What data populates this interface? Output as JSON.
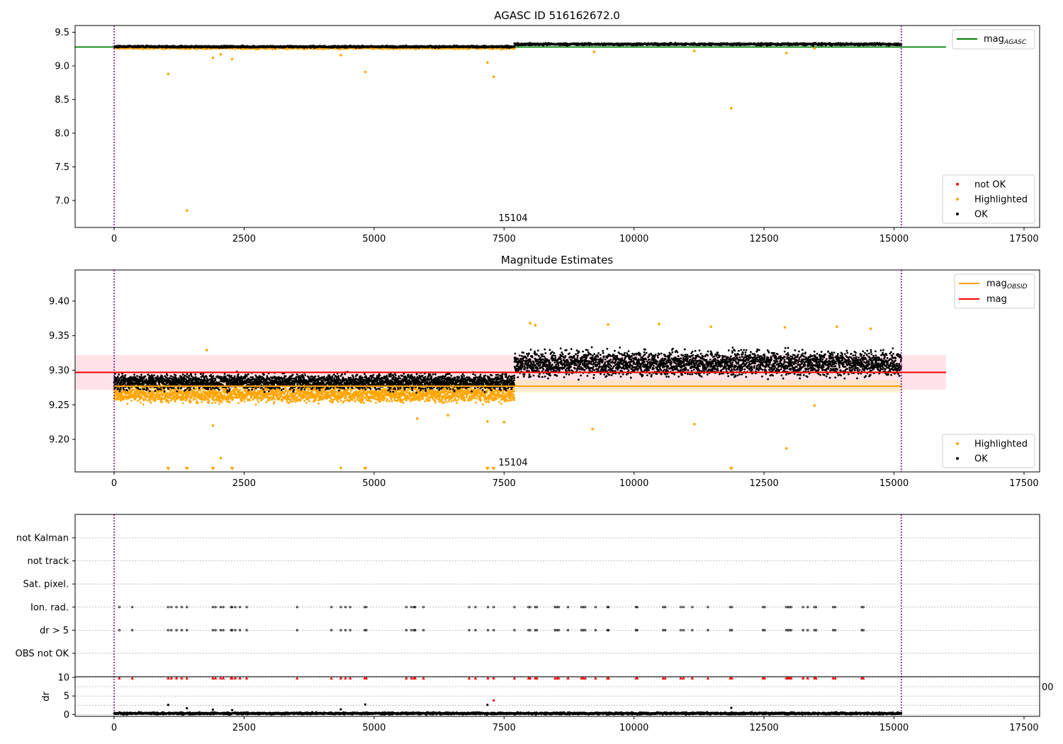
{
  "figure": {
    "title": "AGASC ID 516162672.0",
    "subtitle": "Magnitude Estimates",
    "obsid_label": "15104",
    "stray_label": "00"
  },
  "colors": {
    "ok": "#000000",
    "highlighted": "#ffa500",
    "not_ok": "#ff0000",
    "agasc_line": "#008000",
    "mag_line": "#ff0000",
    "mag_band": "#ffc0cb",
    "obsid_line": "#ffa500",
    "obsid_band": "#ffe4b5",
    "obs_boundary": "#800080",
    "grid": "#b0b0b0"
  },
  "chart_data": [
    {
      "type": "scatter",
      "panel": "top",
      "title": "AGASC ID 516162672.0",
      "xlim": [
        -750,
        17800
      ],
      "ylim": [
        6.6,
        9.6
      ],
      "xticks": [
        0,
        2500,
        5000,
        7500,
        10000,
        12500,
        15000,
        17500
      ],
      "yticks": [
        7.0,
        7.5,
        8.0,
        8.5,
        9.0,
        9.5
      ],
      "xticklabels": [
        "0",
        "2500",
        "5000",
        "7500",
        "10000",
        "12500",
        "15000",
        "17500"
      ],
      "yticklabels": [
        "7.0",
        "7.5",
        "8.0",
        "8.5",
        "9.0",
        "9.5"
      ],
      "legend_lines": {
        "labels": [
          "mag",
          "AGASC"
        ],
        "placement": "top-right"
      },
      "legend_points": {
        "labels": [
          "not OK",
          "Highlighted",
          "OK"
        ],
        "placement": "bottom-right"
      },
      "mag_agasc": 9.28,
      "obs_boundaries": [
        0,
        15140
      ],
      "obsid_label": "15104",
      "ok_segments": [
        {
          "x_range": [
            0,
            7700
          ],
          "center": 9.285,
          "spread": 0.012
        },
        {
          "x_range": [
            7700,
            15140
          ],
          "center": 9.322,
          "spread": 0.014
        }
      ],
      "highlighted_band": {
        "x_range": [
          0,
          7700
        ],
        "center": 9.262,
        "spread": 0.012
      },
      "highlighted_outliers": [
        [
          1040,
          8.88
        ],
        [
          1400,
          6.85
        ],
        [
          1900,
          9.12
        ],
        [
          2050,
          9.17
        ],
        [
          2270,
          9.1
        ],
        [
          4360,
          9.16
        ],
        [
          4830,
          8.91
        ],
        [
          7180,
          9.05
        ],
        [
          7300,
          8.84
        ],
        [
          9230,
          9.21
        ],
        [
          11160,
          9.22
        ],
        [
          11870,
          8.37
        ],
        [
          12930,
          9.19
        ],
        [
          13470,
          9.26
        ]
      ]
    },
    {
      "type": "scatter",
      "panel": "middle",
      "title": "Magnitude Estimates",
      "xlim": [
        -750,
        17800
      ],
      "ylim": [
        9.153,
        9.445
      ],
      "xticks": [
        0,
        2500,
        5000,
        7500,
        10000,
        12500,
        15000,
        17500
      ],
      "yticks": [
        9.2,
        9.25,
        9.3,
        9.35,
        9.4
      ],
      "xticklabels": [
        "0",
        "2500",
        "5000",
        "7500",
        "10000",
        "12500",
        "15000",
        "17500"
      ],
      "yticklabels": [
        "9.20",
        "9.25",
        "9.30",
        "9.35",
        "9.40"
      ],
      "legend_lines": {
        "labels": [
          "mag",
          "OBSID",
          "mag"
        ],
        "placement": "top-right"
      },
      "legend_points": {
        "labels": [
          "Highlighted",
          "OK"
        ],
        "placement": "bottom-right"
      },
      "mag": 9.297,
      "mag_band": [
        9.272,
        9.322
      ],
      "mag_obsid": 9.277,
      "mag_obsid_band": [
        9.268,
        9.286
      ],
      "obs_boundaries": [
        0,
        15140
      ],
      "obsid_label": "15104",
      "ok_segments": [
        {
          "x_range": [
            0,
            7700
          ],
          "center": 9.283,
          "spread": 0.01
        },
        {
          "x_range": [
            7700,
            15140
          ],
          "center": 9.31,
          "spread": 0.016
        }
      ],
      "highlighted_band": {
        "x_range": [
          0,
          7700
        ],
        "center": 9.265,
        "spread": 0.01
      },
      "highlighted_outliers": [
        [
          1780,
          9.329
        ],
        [
          1900,
          9.22
        ],
        [
          2050,
          9.173
        ],
        [
          4360,
          9.159
        ],
        [
          5830,
          9.23
        ],
        [
          6420,
          9.235
        ],
        [
          7180,
          9.226
        ],
        [
          7500,
          9.225
        ],
        [
          8000,
          9.368
        ],
        [
          8100,
          9.365
        ],
        [
          9200,
          9.215
        ],
        [
          9500,
          9.366
        ],
        [
          10480,
          9.367
        ],
        [
          11160,
          9.222
        ],
        [
          11480,
          9.363
        ],
        [
          12900,
          9.362
        ],
        [
          12930,
          9.187
        ],
        [
          13470,
          9.249
        ],
        [
          13900,
          9.363
        ],
        [
          14550,
          9.36
        ]
      ],
      "below_range_markers": [
        1040,
        1400,
        1900,
        2270,
        4830,
        7180,
        7300,
        11870
      ]
    },
    {
      "type": "scatter",
      "panel": "flags",
      "xlim": [
        -750,
        17800
      ],
      "categories": [
        "not Kalman",
        "not track",
        "Sat. pixel.",
        "Ion. rad.",
        "dr > 5",
        "OBS not OK"
      ],
      "obs_boundaries": [
        0,
        15140
      ],
      "flag_times": [
        100,
        350,
        1040,
        1100,
        1200,
        1300,
        1400,
        1900,
        1950,
        2050,
        2100,
        2250,
        2270,
        2330,
        2420,
        2550,
        3520,
        4180,
        4360,
        4450,
        4540,
        4820,
        4850,
        5620,
        5720,
        5770,
        5790,
        5950,
        6830,
        6950,
        7190,
        7300,
        7700,
        7970,
        8000,
        8100,
        8130,
        8480,
        8520,
        8550,
        8730,
        8990,
        9020,
        9060,
        9260,
        9490,
        9510,
        10040,
        10060,
        10560,
        10600,
        10900,
        10950,
        11120,
        11420,
        11850,
        11880,
        12480,
        12510,
        12930,
        12960,
        12990,
        13020,
        13250,
        13340,
        13470,
        13500,
        13830,
        13870,
        14380,
        14410
      ],
      "flag_rows": [
        "Ion. rad.",
        "dr > 5"
      ]
    },
    {
      "type": "scatter",
      "panel": "dr",
      "xlim": [
        -750,
        17800
      ],
      "ylim": [
        -0.5,
        10.2
      ],
      "ylabel": "dr",
      "yticks": [
        0,
        5,
        10
      ],
      "yticklabels": [
        "0",
        "5",
        "10"
      ],
      "xticks": [
        0,
        2500,
        5000,
        7500,
        10000,
        12500,
        15000,
        17500
      ],
      "xticklabels": [
        "0",
        "2500",
        "5000",
        "7500",
        "10000",
        "12500",
        "15000",
        "17500"
      ],
      "obs_boundaries": [
        0,
        15140
      ],
      "ok_band": {
        "x_range": [
          0,
          15140
        ],
        "center": 0.3,
        "spread": 0.25
      },
      "ok_outliers": [
        [
          1040,
          2.6
        ],
        [
          1400,
          1.7
        ],
        [
          1900,
          1.3
        ],
        [
          2270,
          1.2
        ],
        [
          4360,
          1.4
        ],
        [
          4830,
          2.7
        ],
        [
          7180,
          2.6
        ],
        [
          11870,
          1.8
        ]
      ],
      "not_ok_at_cap": 9.8,
      "not_ok_extra": [
        [
          7300,
          3.8
        ]
      ]
    }
  ]
}
